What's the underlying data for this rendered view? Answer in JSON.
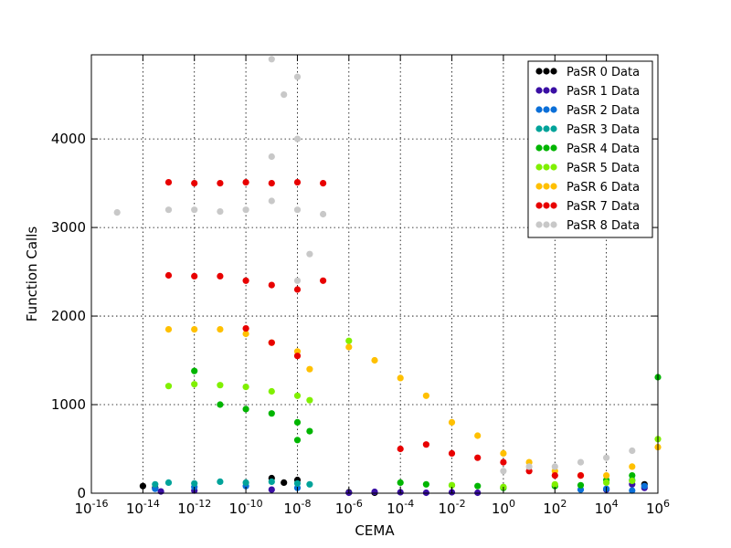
{
  "chart_data": {
    "type": "scatter",
    "title": "",
    "xlabel": "CEMA",
    "ylabel": "Function Calls",
    "xscale": "log",
    "xlim": [
      1e-16,
      1000000.0
    ],
    "ylim": [
      0,
      4950
    ],
    "grid": true,
    "legend_position": "top-right",
    "x_tick_values": [
      -16,
      -14,
      -12,
      -10,
      -8,
      -6,
      -4,
      -2,
      0,
      2,
      4,
      6
    ],
    "y_ticks": [
      0,
      1000,
      2000,
      3000,
      4000
    ],
    "series": [
      {
        "name": "PaSR 0 Data",
        "color": "#000000",
        "points": [
          [
            1e-14,
            80
          ],
          [
            3e-14,
            60
          ],
          [
            1e-09,
            170
          ],
          [
            1e-08,
            150
          ],
          [
            3e-09,
            120
          ],
          [
            1e-06,
            10
          ],
          [
            1e-05,
            5
          ],
          [
            300000.0,
            100
          ]
        ]
      },
      {
        "name": "PaSR 1 Data",
        "color": "#3a0fa4",
        "points": [
          [
            5e-14,
            20
          ],
          [
            1e-12,
            30
          ],
          [
            1e-09,
            40
          ],
          [
            1e-06,
            5
          ],
          [
            1e-05,
            15
          ],
          [
            0.0001,
            10
          ],
          [
            0.001,
            5
          ],
          [
            0.01,
            10
          ],
          [
            0.1,
            5
          ],
          [
            10000.0,
            40
          ],
          [
            100000.0,
            100
          ],
          [
            300000.0,
            60
          ]
        ]
      },
      {
        "name": "PaSR 2 Data",
        "color": "#0b6fd8",
        "points": [
          [
            3e-14,
            50
          ],
          [
            1e-12,
            70
          ],
          [
            1e-10,
            80
          ],
          [
            1e-08,
            60
          ],
          [
            1000.0,
            40
          ],
          [
            10000.0,
            50
          ],
          [
            100000.0,
            30
          ],
          [
            300000.0,
            80
          ]
        ]
      },
      {
        "name": "PaSR 3 Data",
        "color": "#00a39a",
        "points": [
          [
            3e-14,
            100
          ],
          [
            1e-13,
            120
          ],
          [
            1e-12,
            110
          ],
          [
            1e-11,
            130
          ],
          [
            1e-10,
            120
          ],
          [
            1e-09,
            130
          ],
          [
            1e-08,
            110
          ],
          [
            3e-08,
            100
          ],
          [
            100000.0,
            150
          ]
        ]
      },
      {
        "name": "PaSR 4 Data",
        "color": "#00b500",
        "points": [
          [
            1e-12,
            1380
          ],
          [
            1e-11,
            1000
          ],
          [
            1e-10,
            950
          ],
          [
            1e-09,
            900
          ],
          [
            1e-08,
            800
          ],
          [
            3e-08,
            700
          ],
          [
            1e-08,
            600
          ],
          [
            0.0001,
            120
          ],
          [
            0.001,
            100
          ],
          [
            0.01,
            90
          ],
          [
            0.1,
            80
          ],
          [
            1,
            60
          ],
          [
            100.0,
            80
          ],
          [
            1000.0,
            90
          ],
          [
            10000.0,
            150
          ],
          [
            100000.0,
            200
          ],
          [
            1000000.0,
            1310
          ]
        ]
      },
      {
        "name": "PaSR 5 Data",
        "color": "#80f000",
        "points": [
          [
            1e-13,
            1210
          ],
          [
            1e-12,
            1230
          ],
          [
            1e-11,
            1220
          ],
          [
            1e-10,
            1200
          ],
          [
            1e-09,
            1150
          ],
          [
            1e-08,
            1100
          ],
          [
            3e-08,
            1050
          ],
          [
            1e-06,
            1720
          ],
          [
            0.01,
            90
          ],
          [
            1,
            70
          ],
          [
            100.0,
            100
          ],
          [
            10000.0,
            120
          ],
          [
            100000.0,
            140
          ],
          [
            1000000.0,
            610
          ]
        ]
      },
      {
        "name": "PaSR 6 Data",
        "color": "#ffc000",
        "points": [
          [
            1e-13,
            1850
          ],
          [
            1e-12,
            1850
          ],
          [
            1e-11,
            1850
          ],
          [
            1e-10,
            1800
          ],
          [
            1e-09,
            1700
          ],
          [
            1e-08,
            1600
          ],
          [
            3e-08,
            1400
          ],
          [
            1e-06,
            1650
          ],
          [
            1e-05,
            1500
          ],
          [
            0.0001,
            1300
          ],
          [
            0.001,
            1100
          ],
          [
            0.01,
            800
          ],
          [
            0.1,
            650
          ],
          [
            1,
            450
          ],
          [
            10.0,
            350
          ],
          [
            100.0,
            250
          ],
          [
            1000.0,
            200
          ],
          [
            10000.0,
            200
          ],
          [
            100000.0,
            300
          ],
          [
            1000000.0,
            520
          ]
        ]
      },
      {
        "name": "PaSR 7 Data",
        "color": "#e80000",
        "points": [
          [
            1e-13,
            3510
          ],
          [
            1e-12,
            3500
          ],
          [
            1e-11,
            3500
          ],
          [
            1e-10,
            3510
          ],
          [
            1e-09,
            3500
          ],
          [
            1e-08,
            3510
          ],
          [
            1e-07,
            3500
          ],
          [
            1e-13,
            2460
          ],
          [
            1e-12,
            2450
          ],
          [
            1e-11,
            2450
          ],
          [
            1e-10,
            2400
          ],
          [
            1e-09,
            2350
          ],
          [
            1e-08,
            2300
          ],
          [
            1e-07,
            2400
          ],
          [
            1e-10,
            1860
          ],
          [
            1e-09,
            1700
          ],
          [
            1e-08,
            1550
          ],
          [
            0.0001,
            500
          ],
          [
            0.001,
            550
          ],
          [
            0.01,
            450
          ],
          [
            0.1,
            400
          ],
          [
            1,
            350
          ],
          [
            10.0,
            250
          ],
          [
            100.0,
            200
          ],
          [
            1000.0,
            200
          ]
        ]
      },
      {
        "name": "PaSR 8 Data",
        "color": "#c8c8c8",
        "points": [
          [
            1e-15,
            3170
          ],
          [
            1e-13,
            3200
          ],
          [
            1e-12,
            3200
          ],
          [
            1e-11,
            3180
          ],
          [
            1e-10,
            3200
          ],
          [
            1e-09,
            3300
          ],
          [
            1e-08,
            3200
          ],
          [
            1e-07,
            3150
          ],
          [
            1e-09,
            4900
          ],
          [
            1e-08,
            4700
          ],
          [
            3e-09,
            4500
          ],
          [
            1e-08,
            4000
          ],
          [
            1e-09,
            3800
          ],
          [
            3e-08,
            2700
          ],
          [
            1e-08,
            2400
          ],
          [
            1,
            250
          ],
          [
            10.0,
            300
          ],
          [
            100.0,
            300
          ],
          [
            1000.0,
            350
          ],
          [
            10000.0,
            400
          ],
          [
            100000.0,
            480
          ]
        ]
      }
    ]
  }
}
